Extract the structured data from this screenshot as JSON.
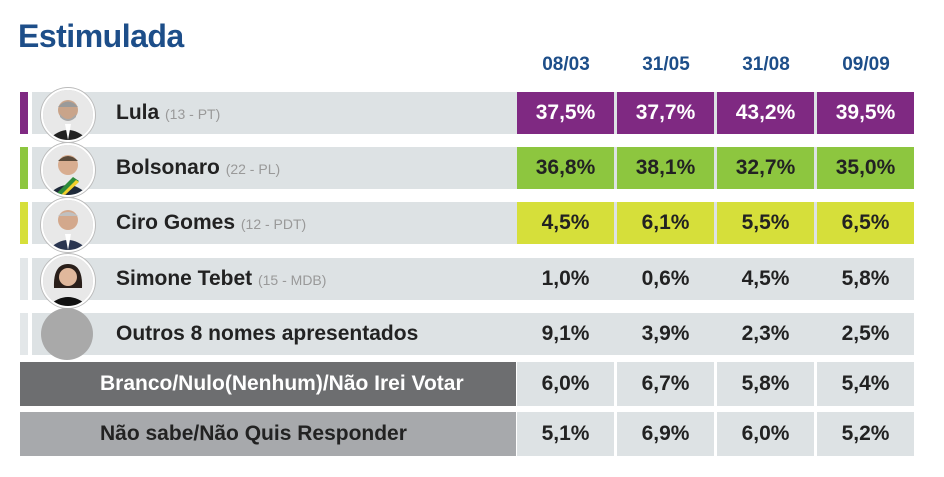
{
  "title": "Estimulada",
  "chart_data": {
    "type": "table",
    "dates": [
      "08/03",
      "31/05",
      "31/08",
      "09/09"
    ],
    "rows": [
      {
        "name": "Lula",
        "party": "(13 - PT)",
        "values": [
          "37,5%",
          "37,7%",
          "43,2%",
          "39,5%"
        ],
        "color": "#7f2982",
        "avatar": "lula-photo"
      },
      {
        "name": "Bolsonaro",
        "party": "(22 - PL)",
        "values": [
          "36,8%",
          "38,1%",
          "32,7%",
          "35,0%"
        ],
        "color": "#8dc63f",
        "avatar": "bolsonaro-photo"
      },
      {
        "name": "Ciro Gomes",
        "party": "(12 - PDT)",
        "values": [
          "4,5%",
          "6,1%",
          "5,5%",
          "6,5%"
        ],
        "color": "#d6df3a",
        "avatar": "ciro-photo"
      },
      {
        "name": "Simone Tebet",
        "party": "(15 - MDB)",
        "values": [
          "1,0%",
          "0,6%",
          "4,5%",
          "5,8%"
        ],
        "color": "#e3e7e9",
        "avatar": "tebet-photo"
      },
      {
        "name": "Outros 8 nomes apresentados",
        "party": "",
        "values": [
          "9,1%",
          "3,9%",
          "2,3%",
          "2,5%"
        ],
        "color": "#e3e7e9",
        "avatar": "placeholder"
      }
    ],
    "summary_rows": [
      {
        "label": "Branco/Nulo(Nenhum)/Não Irei Votar",
        "values": [
          "6,0%",
          "6,7%",
          "5,8%",
          "5,4%"
        ],
        "color": "#6d6e70"
      },
      {
        "label": "Não sabe/Não Quis Responder",
        "values": [
          "5,1%",
          "6,9%",
          "6,0%",
          "5,2%"
        ],
        "color": "#a7a9ac"
      }
    ]
  }
}
